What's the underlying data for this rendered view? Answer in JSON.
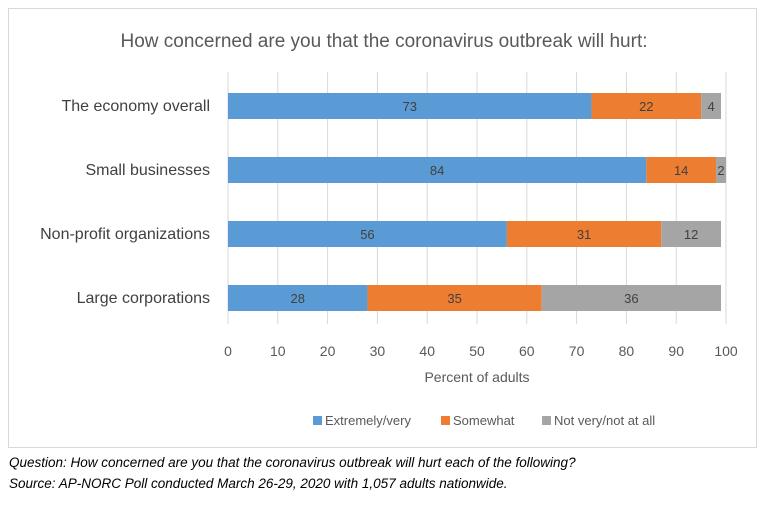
{
  "chart_data": {
    "type": "bar",
    "orientation": "horizontal",
    "stacked": true,
    "title": "How concerned are you that the coronavirus outbreak will hurt:",
    "xlabel": "Percent of adults",
    "ylabel": "",
    "xlim": [
      0,
      100
    ],
    "x_ticks": [
      "0",
      "10",
      "20",
      "30",
      "40",
      "50",
      "60",
      "70",
      "80",
      "90",
      "100"
    ],
    "grid": "vertical",
    "legend_position": "bottom",
    "categories": [
      "The economy overall",
      "Small businesses",
      "Non-profit organizations",
      "Large corporations"
    ],
    "series": [
      {
        "name": "Extremely/very",
        "color": "#5b9bd5",
        "values": [
          73,
          84,
          56,
          28
        ]
      },
      {
        "name": "Somewhat",
        "color": "#ed7d31",
        "values": [
          22,
          14,
          31,
          35
        ]
      },
      {
        "name": "Not very/not at all",
        "color": "#a5a5a5",
        "values": [
          4,
          2,
          12,
          36
        ]
      }
    ]
  },
  "footnotes": {
    "question": "Question: How concerned are you that the coronavirus outbreak will hurt each of the following?",
    "source": "Source: AP-NORC Poll conducted March 26-29, 2020 with 1,057 adults nationwide."
  }
}
